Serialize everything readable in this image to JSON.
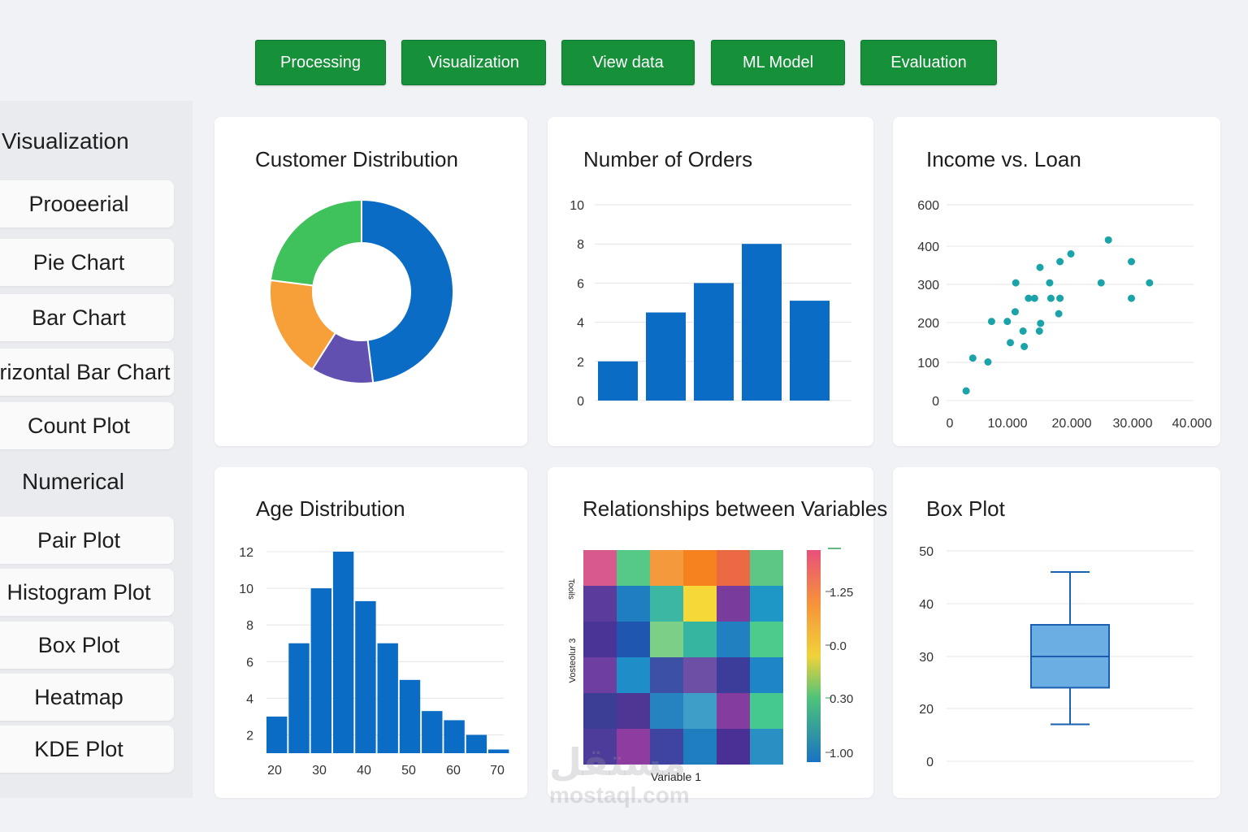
{
  "nav": [
    "Processing",
    "Visualization",
    "View data",
    "ML Model",
    "Evaluation"
  ],
  "sidebar": {
    "section1": "Visualization",
    "items1": [
      "Prooeerial",
      "Pie Chart",
      "Bar Chart",
      "orizontal Bar Chart",
      "Count Plot"
    ],
    "section2": "Numerical",
    "items2": [
      "Pair Plot",
      "Histogram Plot",
      "Box Plot",
      "Heatmap",
      "KDE Plot"
    ]
  },
  "cards": {
    "customer": "Customer Distribution",
    "orders": "Number of Orders",
    "income": "Income vs. Loan",
    "age": "Age Distribution",
    "relations": "Relationships between Variables",
    "box": "Box Plot"
  },
  "watermark": {
    "arabic": "مستقل",
    "latin": "mostaql.com"
  },
  "colors": {
    "accent": "#16913a",
    "bar": "#0a6cc4",
    "scatter": "#1aa3a8",
    "box": "#6aaee3"
  },
  "chart_data": [
    {
      "type": "pie",
      "title": "Customer Distribution",
      "donut": true,
      "values": [
        48,
        11,
        18,
        23
      ],
      "colors": [
        "#0a6cc4",
        "#6250b0",
        "#f7a03a",
        "#3fc15b"
      ]
    },
    {
      "type": "bar",
      "title": "Number of Orders",
      "values": [
        2,
        4.5,
        6,
        8,
        5.1
      ],
      "ylim": [
        0,
        10
      ],
      "yticks": [
        "0",
        "2",
        "4",
        "6",
        "8",
        "10"
      ]
    },
    {
      "type": "scatter",
      "title": "Income vs. Loan",
      "xlim": [
        0,
        40000
      ],
      "ylim": [
        0,
        600
      ],
      "xticks": [
        "0",
        "10.000",
        "20.000",
        "30.000",
        "40.000"
      ],
      "yticks": [
        "0",
        "100",
        "200",
        "300",
        "400",
        "600"
      ],
      "points": [
        [
          2700,
          25
        ],
        [
          3800,
          110
        ],
        [
          6300,
          100
        ],
        [
          6900,
          205
        ],
        [
          9500,
          205
        ],
        [
          10000,
          150
        ],
        [
          10800,
          230
        ],
        [
          10900,
          305
        ],
        [
          12100,
          180
        ],
        [
          12300,
          140
        ],
        [
          13000,
          265
        ],
        [
          14000,
          265
        ],
        [
          14800,
          180
        ],
        [
          14900,
          345
        ],
        [
          15000,
          200
        ],
        [
          16500,
          305
        ],
        [
          16700,
          265
        ],
        [
          18000,
          225
        ],
        [
          18200,
          360
        ],
        [
          18200,
          265
        ],
        [
          20000,
          380
        ],
        [
          25000,
          305
        ],
        [
          26200,
          430
        ],
        [
          30000,
          360
        ],
        [
          30000,
          265
        ],
        [
          33000,
          305
        ]
      ]
    },
    {
      "type": "bar",
      "title": "Age Distribution",
      "xticks": [
        "20",
        "30",
        "40",
        "50",
        "60",
        "70"
      ],
      "values": [
        3,
        7,
        10,
        12,
        9.3,
        7,
        5,
        3.3,
        2.8,
        2,
        1.2
      ],
      "ylim": [
        1,
        12
      ],
      "yticks": [
        "2",
        "4",
        "6",
        "8",
        "10",
        "12"
      ]
    },
    {
      "type": "heatmap",
      "title": "Relationships between Variables",
      "xlabel": "Variable 1",
      "ylabel": "Vosteolur 3",
      "ylabel_top": "Tooils",
      "colorbar_ticks": [
        "1.25",
        "0.0",
        "0.30",
        "1.00"
      ],
      "cells": [
        [
          "#d75a8c",
          "#55c985",
          "#f59a3c",
          "#f6821f",
          "#ec6a43",
          "#5dc886"
        ],
        [
          "#5b3b9c",
          "#1e7ec0",
          "#3cb7a3",
          "#f6d838",
          "#7a3c9c",
          "#1e96c6"
        ],
        [
          "#4a3596",
          "#1e56b0",
          "#7ccf86",
          "#36b6a0",
          "#2180c0",
          "#4dcb8c"
        ],
        [
          "#6e3ea1",
          "#1e8dc8",
          "#3c50a6",
          "#6e4fa6",
          "#3c3d9a",
          "#1e86c6"
        ],
        [
          "#3c3d94",
          "#4e3694",
          "#2683bf",
          "#3f9ec8",
          "#843c9e",
          "#46c98e"
        ],
        [
          "#4e3c9a",
          "#8e3ca0",
          "#3f44a2",
          "#1f7ec0",
          "#4a2f94",
          "#2a90c4"
        ]
      ]
    },
    {
      "type": "box",
      "title": "Box Plot",
      "ylim": [
        0,
        50
      ],
      "yticks": [
        "0",
        "20",
        "30",
        "40",
        "50"
      ],
      "whisker_low": 14,
      "q1": 24,
      "median": 30,
      "q3": 36,
      "whisker_high": 46
    }
  ]
}
